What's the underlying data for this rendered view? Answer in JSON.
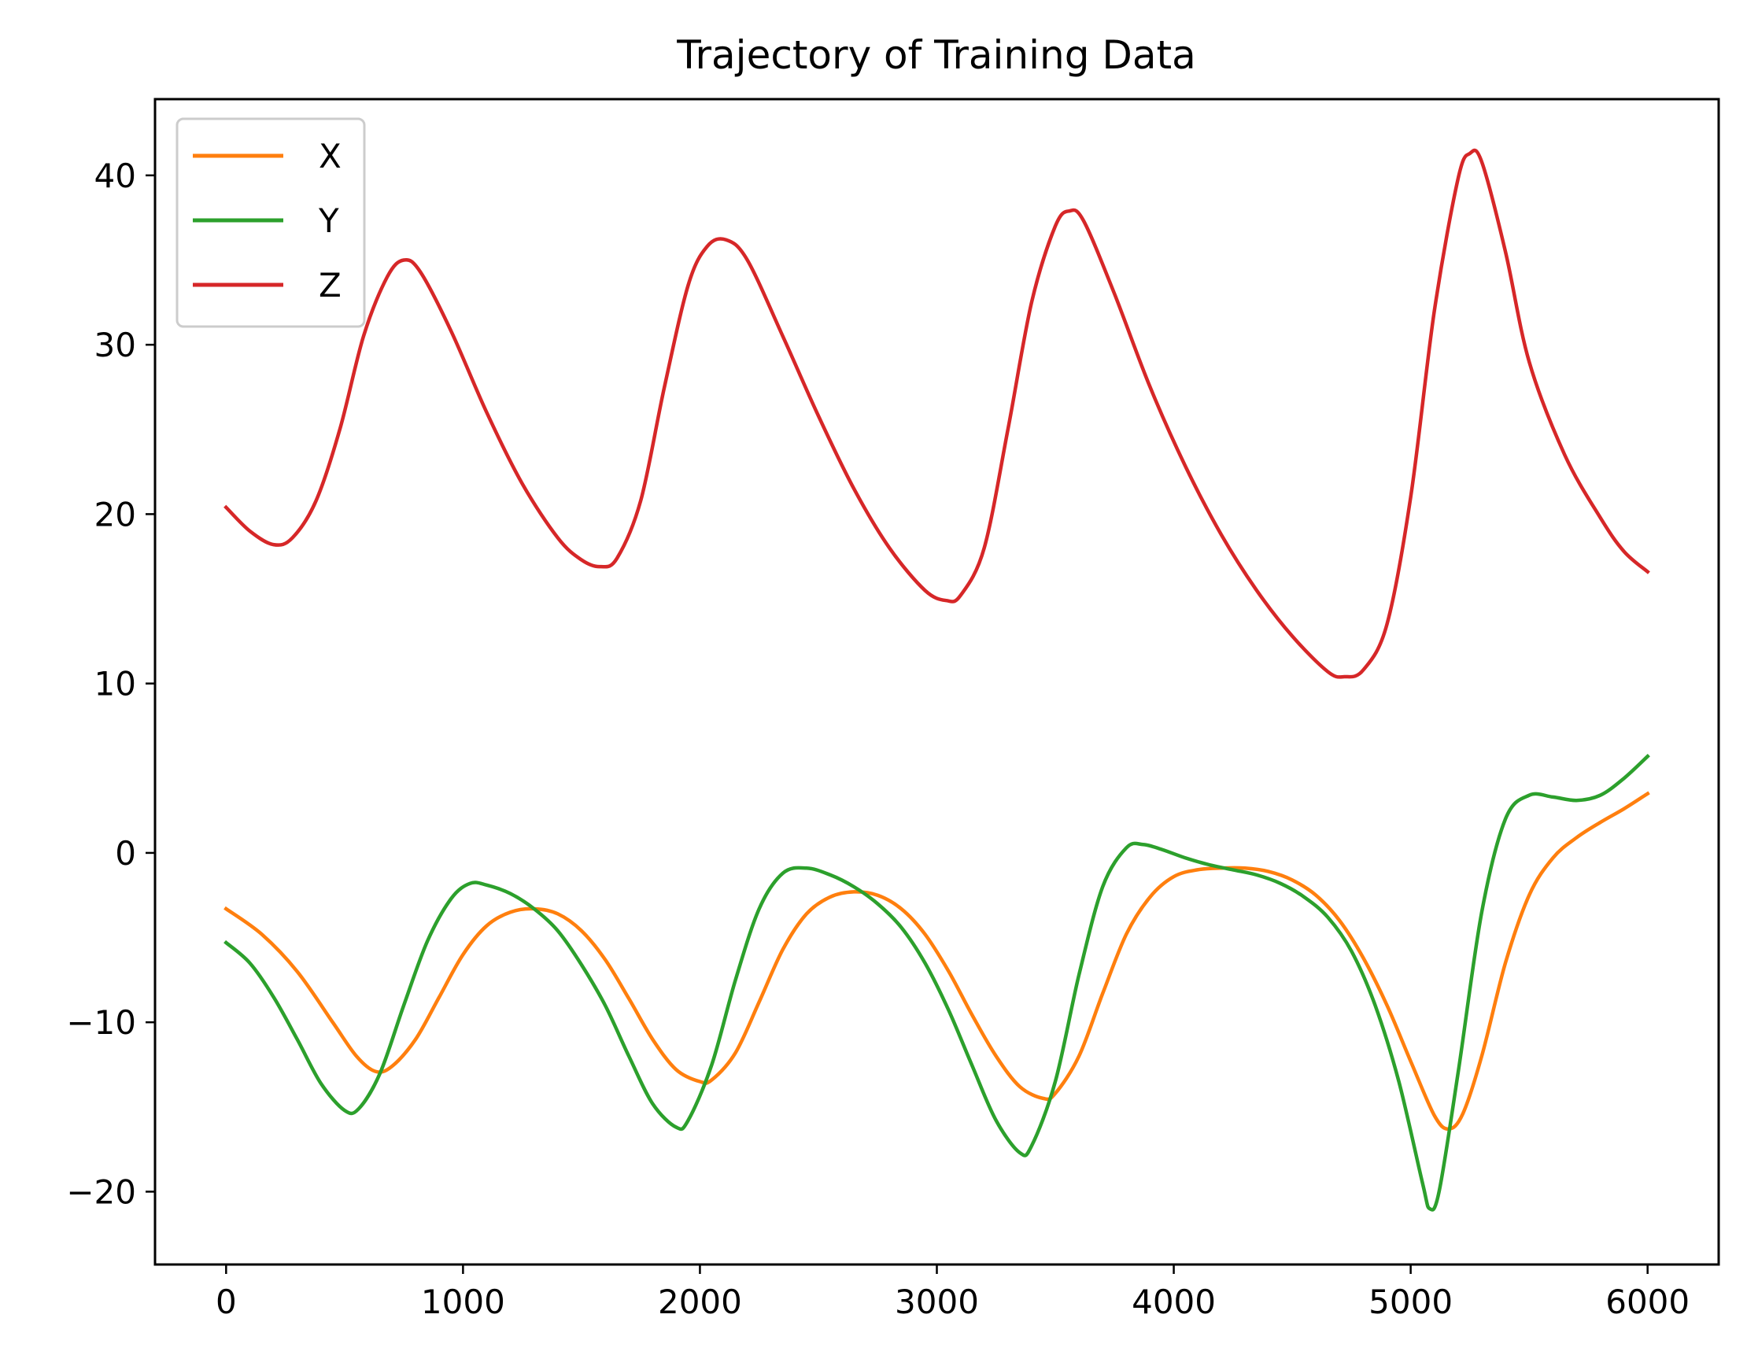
{
  "chart_data": {
    "type": "line",
    "title": "Trajectory of Training Data",
    "xlabel": "",
    "ylabel": "",
    "xlim": [
      -300,
      6300
    ],
    "ylim": [
      -24.3,
      44.5
    ],
    "xticks": [
      0,
      1000,
      2000,
      3000,
      4000,
      5000,
      6000
    ],
    "xtick_labels": [
      "0",
      "1000",
      "2000",
      "3000",
      "4000",
      "5000",
      "6000"
    ],
    "yticks": [
      -20,
      -10,
      0,
      10,
      20,
      30,
      40
    ],
    "ytick_labels": [
      "−20",
      "−10",
      "0",
      "10",
      "20",
      "30",
      "40"
    ],
    "grid": false,
    "legend": {
      "position": "top-left",
      "entries": [
        "X",
        "Y",
        "Z"
      ]
    },
    "series": [
      {
        "name": "X",
        "color": "#ff7f0e",
        "points": [
          [
            0,
            -3.3
          ],
          [
            150,
            -4.8
          ],
          [
            300,
            -7.0
          ],
          [
            450,
            -10.0
          ],
          [
            550,
            -12.0
          ],
          [
            630,
            -12.9
          ],
          [
            700,
            -12.6
          ],
          [
            800,
            -11.0
          ],
          [
            900,
            -8.5
          ],
          [
            1000,
            -6.0
          ],
          [
            1100,
            -4.3
          ],
          [
            1200,
            -3.5
          ],
          [
            1300,
            -3.3
          ],
          [
            1400,
            -3.6
          ],
          [
            1500,
            -4.6
          ],
          [
            1600,
            -6.3
          ],
          [
            1700,
            -8.6
          ],
          [
            1800,
            -11.0
          ],
          [
            1900,
            -12.8
          ],
          [
            2000,
            -13.5
          ],
          [
            2050,
            -13.4
          ],
          [
            2150,
            -11.8
          ],
          [
            2250,
            -8.8
          ],
          [
            2350,
            -5.7
          ],
          [
            2450,
            -3.6
          ],
          [
            2550,
            -2.6
          ],
          [
            2650,
            -2.3
          ],
          [
            2750,
            -2.5
          ],
          [
            2850,
            -3.3
          ],
          [
            2950,
            -4.8
          ],
          [
            3050,
            -7.0
          ],
          [
            3150,
            -9.6
          ],
          [
            3250,
            -12.0
          ],
          [
            3350,
            -13.8
          ],
          [
            3450,
            -14.5
          ],
          [
            3500,
            -14.2
          ],
          [
            3600,
            -12.0
          ],
          [
            3700,
            -8.3
          ],
          [
            3800,
            -4.8
          ],
          [
            3900,
            -2.6
          ],
          [
            4000,
            -1.4
          ],
          [
            4100,
            -1.0
          ],
          [
            4200,
            -0.9
          ],
          [
            4300,
            -0.9
          ],
          [
            4400,
            -1.1
          ],
          [
            4500,
            -1.6
          ],
          [
            4600,
            -2.5
          ],
          [
            4700,
            -4.0
          ],
          [
            4800,
            -6.2
          ],
          [
            4900,
            -9.0
          ],
          [
            5000,
            -12.3
          ],
          [
            5100,
            -15.5
          ],
          [
            5160,
            -16.3
          ],
          [
            5220,
            -15.4
          ],
          [
            5300,
            -12.0
          ],
          [
            5400,
            -6.5
          ],
          [
            5500,
            -2.5
          ],
          [
            5600,
            -0.3
          ],
          [
            5700,
            0.9
          ],
          [
            5800,
            1.8
          ],
          [
            5900,
            2.6
          ],
          [
            6000,
            3.5
          ]
        ]
      },
      {
        "name": "Y",
        "color": "#2ca02c",
        "points": [
          [
            0,
            -5.3
          ],
          [
            100,
            -6.5
          ],
          [
            200,
            -8.5
          ],
          [
            300,
            -11.0
          ],
          [
            400,
            -13.6
          ],
          [
            500,
            -15.2
          ],
          [
            560,
            -15.1
          ],
          [
            650,
            -13.0
          ],
          [
            750,
            -9.0
          ],
          [
            850,
            -5.2
          ],
          [
            950,
            -2.7
          ],
          [
            1030,
            -1.8
          ],
          [
            1100,
            -1.9
          ],
          [
            1200,
            -2.4
          ],
          [
            1300,
            -3.3
          ],
          [
            1400,
            -4.6
          ],
          [
            1500,
            -6.6
          ],
          [
            1600,
            -9.0
          ],
          [
            1700,
            -12.0
          ],
          [
            1800,
            -14.8
          ],
          [
            1900,
            -16.2
          ],
          [
            1950,
            -15.8
          ],
          [
            2050,
            -12.5
          ],
          [
            2150,
            -7.5
          ],
          [
            2250,
            -3.3
          ],
          [
            2350,
            -1.2
          ],
          [
            2450,
            -0.9
          ],
          [
            2550,
            -1.3
          ],
          [
            2650,
            -2.0
          ],
          [
            2750,
            -3.0
          ],
          [
            2850,
            -4.4
          ],
          [
            2950,
            -6.5
          ],
          [
            3050,
            -9.3
          ],
          [
            3150,
            -12.6
          ],
          [
            3250,
            -15.8
          ],
          [
            3350,
            -17.7
          ],
          [
            3400,
            -17.3
          ],
          [
            3500,
            -13.5
          ],
          [
            3600,
            -7.2
          ],
          [
            3700,
            -2.0
          ],
          [
            3800,
            0.3
          ],
          [
            3870,
            0.5
          ],
          [
            3950,
            0.2
          ],
          [
            4050,
            -0.3
          ],
          [
            4150,
            -0.7
          ],
          [
            4250,
            -1.0
          ],
          [
            4350,
            -1.3
          ],
          [
            4450,
            -1.8
          ],
          [
            4550,
            -2.6
          ],
          [
            4650,
            -3.8
          ],
          [
            4750,
            -5.8
          ],
          [
            4850,
            -9.0
          ],
          [
            4950,
            -13.5
          ],
          [
            5050,
            -19.5
          ],
          [
            5080,
            -21.0
          ],
          [
            5120,
            -20.0
          ],
          [
            5200,
            -13.0
          ],
          [
            5300,
            -3.5
          ],
          [
            5400,
            2.0
          ],
          [
            5500,
            3.4
          ],
          [
            5600,
            3.3
          ],
          [
            5700,
            3.1
          ],
          [
            5800,
            3.4
          ],
          [
            5900,
            4.4
          ],
          [
            6000,
            5.7
          ]
        ]
      },
      {
        "name": "Z",
        "color": "#d62728",
        "points": [
          [
            0,
            20.4
          ],
          [
            100,
            19.0
          ],
          [
            200,
            18.2
          ],
          [
            280,
            18.6
          ],
          [
            380,
            20.8
          ],
          [
            480,
            25.0
          ],
          [
            580,
            30.5
          ],
          [
            680,
            34.0
          ],
          [
            750,
            35.0
          ],
          [
            820,
            34.3
          ],
          [
            950,
            30.8
          ],
          [
            1100,
            26.0
          ],
          [
            1250,
            21.8
          ],
          [
            1400,
            18.6
          ],
          [
            1500,
            17.3
          ],
          [
            1580,
            16.9
          ],
          [
            1650,
            17.4
          ],
          [
            1750,
            20.8
          ],
          [
            1850,
            27.5
          ],
          [
            1950,
            33.5
          ],
          [
            2030,
            35.8
          ],
          [
            2110,
            36.2
          ],
          [
            2200,
            35.0
          ],
          [
            2350,
            30.5
          ],
          [
            2500,
            25.8
          ],
          [
            2650,
            21.5
          ],
          [
            2800,
            18.0
          ],
          [
            2950,
            15.5
          ],
          [
            3040,
            14.9
          ],
          [
            3100,
            15.2
          ],
          [
            3200,
            18.0
          ],
          [
            3300,
            25.0
          ],
          [
            3400,
            32.5
          ],
          [
            3500,
            37.0
          ],
          [
            3560,
            37.9
          ],
          [
            3620,
            37.3
          ],
          [
            3750,
            33.0
          ],
          [
            3900,
            27.5
          ],
          [
            4050,
            22.8
          ],
          [
            4200,
            18.8
          ],
          [
            4350,
            15.5
          ],
          [
            4500,
            12.8
          ],
          [
            4650,
            10.7
          ],
          [
            4720,
            10.4
          ],
          [
            4800,
            10.8
          ],
          [
            4900,
            13.5
          ],
          [
            5000,
            21.0
          ],
          [
            5100,
            32.0
          ],
          [
            5200,
            39.8
          ],
          [
            5250,
            41.3
          ],
          [
            5300,
            40.8
          ],
          [
            5400,
            35.5
          ],
          [
            5500,
            29.0
          ],
          [
            5650,
            23.5
          ],
          [
            5800,
            19.8
          ],
          [
            5900,
            17.8
          ],
          [
            6000,
            16.6
          ]
        ]
      }
    ]
  }
}
